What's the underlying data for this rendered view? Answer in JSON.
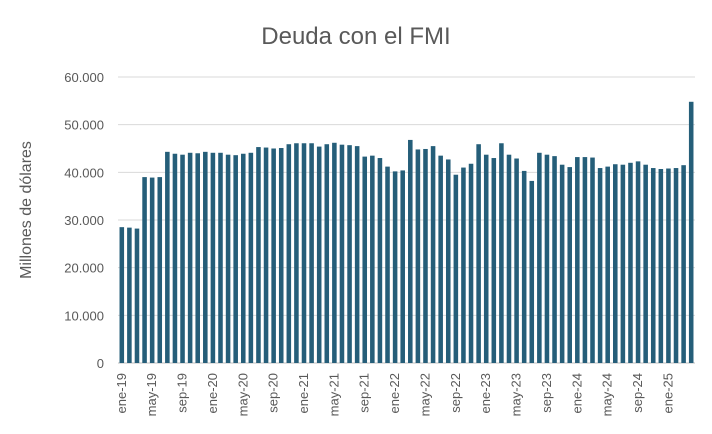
{
  "chart_data": {
    "type": "bar",
    "title": "Deuda con el FMI",
    "y_label": "Millones de dólares",
    "color": "#255e79",
    "grid": true,
    "ylim": [
      0,
      60000
    ],
    "yticks": [
      0,
      {
        "value": 10000,
        "label": "10.000"
      },
      {
        "value": 20000,
        "label": "20.000"
      },
      {
        "value": 30000,
        "label": "30.000"
      },
      {
        "value": 40000,
        "label": "40.000"
      },
      {
        "value": 50000,
        "label": "50.000"
      },
      {
        "value": 60000,
        "label": "60.000"
      }
    ],
    "categories": [
      "ene-19",
      null,
      null,
      null,
      "may-19",
      null,
      null,
      null,
      "sep-19",
      null,
      null,
      null,
      "ene-20",
      null,
      null,
      null,
      "may-20",
      null,
      null,
      null,
      "sep-20",
      null,
      null,
      null,
      "ene-21",
      null,
      null,
      null,
      "may-21",
      null,
      null,
      null,
      "sep-21",
      null,
      null,
      null,
      "ene-22",
      null,
      null,
      null,
      "may-22",
      null,
      null,
      null,
      "sep-22",
      null,
      null,
      null,
      "ene-23",
      null,
      null,
      null,
      "may-23",
      null,
      null,
      null,
      "sep-23",
      null,
      null,
      null,
      "ene-24",
      null,
      null,
      null,
      "may-24",
      null,
      null,
      null,
      "sep-24",
      null,
      null,
      null,
      "ene-25",
      null,
      null,
      null
    ],
    "values": [
      28500,
      28400,
      28200,
      39000,
      38900,
      39000,
      44300,
      43900,
      43700,
      44100,
      44000,
      44300,
      44100,
      44100,
      43700,
      43600,
      43900,
      44100,
      45300,
      45200,
      45000,
      45100,
      45900,
      46100,
      46100,
      46100,
      45400,
      45900,
      46200,
      45800,
      45700,
      45500,
      43300,
      43500,
      43000,
      41200,
      40200,
      40400,
      46800,
      44800,
      44900,
      45500,
      43500,
      42700,
      39500,
      41000,
      41800,
      45900,
      43700,
      43000,
      46100,
      43700,
      42900,
      40300,
      38200,
      44100,
      43700,
      43400,
      41600,
      41100,
      43200,
      43200,
      43100,
      40900,
      41200,
      41700,
      41600,
      42000,
      42300,
      41600,
      40900,
      40700,
      40800,
      40900,
      41500,
      54800
    ]
  }
}
